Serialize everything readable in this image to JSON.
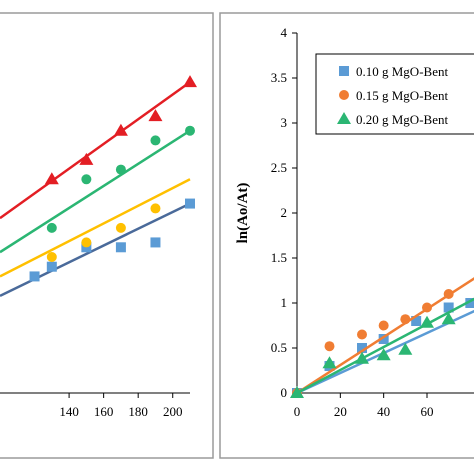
{
  "chart_data": [
    {
      "type": "scatter",
      "title": "",
      "xlabel": "",
      "ylabel": "",
      "xlim": [
        100,
        215
      ],
      "ylim": [
        0,
        3.5
      ],
      "x_ticks": [
        140,
        160,
        180,
        200
      ],
      "tick_labels_x": [
        "140",
        "160",
        "180",
        "200"
      ],
      "grid": false,
      "legend": "none",
      "series": [
        {
          "color": "#4a6a9a",
          "marker": "square",
          "marker_color": "#5b9bd5",
          "x": [
            120,
            130,
            150,
            170,
            190,
            210
          ],
          "y": [
            1.2,
            1.3,
            1.5,
            1.5,
            1.55,
            1.95
          ],
          "fit": {
            "x": [
              100,
              210
            ],
            "y": [
              1.0,
              1.95
            ]
          }
        },
        {
          "color": "#ffc000",
          "marker": "circle",
          "marker_color": "#ffc000",
          "x": [
            130,
            150,
            170,
            190
          ],
          "y": [
            1.4,
            1.55,
            1.7,
            1.9
          ],
          "fit": {
            "x": [
              100,
              210
            ],
            "y": [
              1.2,
              2.2
            ]
          }
        },
        {
          "color": "#2bb673",
          "marker": "circle",
          "marker_color": "#2bb673",
          "x": [
            130,
            150,
            170,
            190,
            210
          ],
          "y": [
            1.7,
            2.2,
            2.3,
            2.6,
            2.7
          ],
          "fit": {
            "x": [
              100,
              210
            ],
            "y": [
              1.45,
              2.7
            ]
          }
        },
        {
          "color": "#e31e24",
          "marker": "triangle",
          "marker_color": "#e31e24",
          "x": [
            130,
            150,
            170,
            190,
            210
          ],
          "y": [
            2.2,
            2.4,
            2.7,
            2.85,
            3.2
          ],
          "fit": {
            "x": [
              100,
              210
            ],
            "y": [
              1.8,
              3.2
            ]
          }
        }
      ]
    },
    {
      "type": "scatter",
      "title": "",
      "xlabel": "",
      "ylabel": "ln(Ao/At)",
      "xlim": [
        0,
        90
      ],
      "ylim": [
        0,
        4
      ],
      "x_ticks": [
        0,
        20,
        40,
        60
      ],
      "y_ticks": [
        0,
        0.5,
        1,
        1.5,
        2,
        2.5,
        3,
        3.5,
        4
      ],
      "tick_labels_x": [
        "0",
        "20",
        "40",
        "60"
      ],
      "tick_labels_y": [
        "0",
        "0.5",
        "1",
        "1.5",
        "2",
        "2.5",
        "3",
        "3.5",
        "4"
      ],
      "grid": false,
      "legend": "top-right",
      "series": [
        {
          "name": "0.10 g MgO-Bent",
          "color": "#5b9bd5",
          "marker": "square",
          "marker_color": "#5b9bd5",
          "x": [
            0,
            15,
            30,
            40,
            55,
            70,
            80
          ],
          "y": [
            0,
            0.3,
            0.5,
            0.6,
            0.8,
            0.95,
            1.0
          ],
          "fit": {
            "x": [
              0,
              90
            ],
            "y": [
              0,
              1.0
            ]
          }
        },
        {
          "name": "0.15 g MgO-Bent",
          "color": "#f07d33",
          "marker": "circle",
          "marker_color": "#f07d33",
          "x": [
            0,
            15,
            30,
            40,
            50,
            60,
            70
          ],
          "y": [
            0,
            0.52,
            0.65,
            0.75,
            0.82,
            0.95,
            1.1
          ],
          "fit": {
            "x": [
              0,
              90
            ],
            "y": [
              0,
              1.4
            ]
          }
        },
        {
          "name": "0.20 g MgO-Bent",
          "color": "#2bb673",
          "marker": "triangle",
          "marker_color": "#2bb673",
          "x": [
            0,
            15,
            30,
            40,
            50,
            60,
            70
          ],
          "y": [
            0,
            0.33,
            0.38,
            0.42,
            0.48,
            0.78,
            0.82
          ],
          "fit": {
            "x": [
              0,
              90
            ],
            "y": [
              0,
              1.15
            ]
          }
        }
      ]
    }
  ]
}
